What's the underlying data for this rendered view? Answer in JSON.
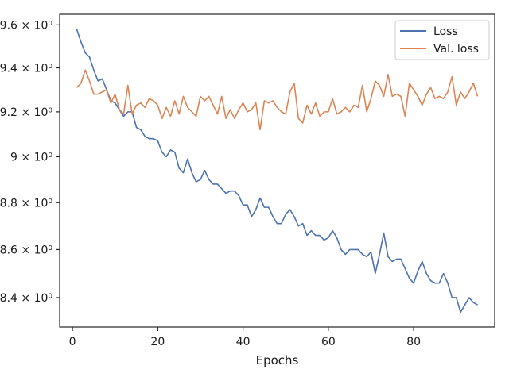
{
  "chart_data": {
    "type": "line",
    "xlabel": "Epochs",
    "ylabel": "",
    "yscale": "log",
    "xlim": [
      -3,
      99
    ],
    "ylim": [
      8.28,
      9.65
    ],
    "xticks": [
      0,
      20,
      40,
      60,
      80
    ],
    "xtick_labels": [
      "0",
      "20",
      "40",
      "60",
      "80"
    ],
    "yticks": [
      8.4,
      8.6,
      8.8,
      9.0,
      9.2,
      9.4,
      9.6
    ],
    "ytick_labels": [
      "8.4 × 10⁰",
      "8.6 × 10⁰",
      "8.8 × 10⁰",
      "9 × 10⁰",
      "9.2 × 10⁰",
      "9.4 × 10⁰",
      "9.6 × 10⁰"
    ],
    "grid": false,
    "legend_position": "top-right",
    "series": [
      {
        "name": "Loss",
        "color": "#4c72b0",
        "x": [
          1,
          2,
          3,
          4,
          5,
          6,
          7,
          8,
          9,
          10,
          11,
          12,
          13,
          14,
          15,
          16,
          17,
          18,
          19,
          20,
          21,
          22,
          23,
          24,
          25,
          26,
          27,
          28,
          29,
          30,
          31,
          32,
          33,
          34,
          35,
          36,
          37,
          38,
          39,
          40,
          41,
          42,
          43,
          44,
          45,
          46,
          47,
          48,
          49,
          50,
          51,
          52,
          53,
          54,
          55,
          56,
          57,
          58,
          59,
          60,
          61,
          62,
          63,
          64,
          65,
          66,
          67,
          68,
          69,
          70,
          71,
          72,
          73,
          74,
          75,
          76,
          77,
          78,
          79,
          80,
          81,
          82,
          83,
          84,
          85,
          86,
          87,
          88,
          89,
          90,
          91,
          92,
          93,
          94,
          95
        ],
        "values": [
          9.58,
          9.52,
          9.47,
          9.45,
          9.39,
          9.34,
          9.35,
          9.3,
          9.25,
          9.24,
          9.21,
          9.18,
          9.2,
          9.2,
          9.13,
          9.12,
          9.09,
          9.08,
          9.08,
          9.07,
          9.02,
          9.0,
          9.03,
          9.02,
          8.95,
          8.93,
          8.99,
          8.93,
          8.89,
          8.9,
          8.94,
          8.9,
          8.88,
          8.88,
          8.86,
          8.84,
          8.85,
          8.85,
          8.83,
          8.79,
          8.79,
          8.74,
          8.77,
          8.82,
          8.78,
          8.78,
          8.74,
          8.71,
          8.71,
          8.75,
          8.77,
          8.74,
          8.7,
          8.71,
          8.66,
          8.68,
          8.66,
          8.66,
          8.64,
          8.65,
          8.68,
          8.65,
          8.6,
          8.58,
          8.6,
          8.6,
          8.6,
          8.58,
          8.57,
          8.59,
          8.5,
          8.58,
          8.67,
          8.57,
          8.55,
          8.56,
          8.56,
          8.52,
          8.48,
          8.46,
          8.51,
          8.55,
          8.5,
          8.47,
          8.46,
          8.46,
          8.5,
          8.46,
          8.4,
          8.4,
          8.34,
          8.37,
          8.4,
          8.38,
          8.37
        ]
      },
      {
        "name": "Val. loss",
        "color": "#dd8452",
        "x": [
          1,
          2,
          3,
          4,
          5,
          6,
          7,
          8,
          9,
          10,
          11,
          12,
          13,
          14,
          15,
          16,
          17,
          18,
          19,
          20,
          21,
          22,
          23,
          24,
          25,
          26,
          27,
          28,
          29,
          30,
          31,
          32,
          33,
          34,
          35,
          36,
          37,
          38,
          39,
          40,
          41,
          42,
          43,
          44,
          45,
          46,
          47,
          48,
          49,
          50,
          51,
          52,
          53,
          54,
          55,
          56,
          57,
          58,
          59,
          60,
          61,
          62,
          63,
          64,
          65,
          66,
          67,
          68,
          69,
          70,
          71,
          72,
          73,
          74,
          75,
          76,
          77,
          78,
          79,
          80,
          81,
          82,
          83,
          84,
          85,
          86,
          87,
          88,
          89,
          90,
          91,
          92,
          93,
          94,
          95
        ],
        "values": [
          9.31,
          9.33,
          9.39,
          9.34,
          9.28,
          9.28,
          9.29,
          9.3,
          9.24,
          9.28,
          9.21,
          9.19,
          9.32,
          9.19,
          9.23,
          9.24,
          9.22,
          9.26,
          9.25,
          9.23,
          9.17,
          9.22,
          9.18,
          9.25,
          9.19,
          9.27,
          9.22,
          9.2,
          9.18,
          9.27,
          9.25,
          9.27,
          9.23,
          9.19,
          9.27,
          9.17,
          9.21,
          9.17,
          9.21,
          9.24,
          9.2,
          9.21,
          9.24,
          9.12,
          9.25,
          9.24,
          9.25,
          9.22,
          9.2,
          9.19,
          9.29,
          9.33,
          9.17,
          9.15,
          9.23,
          9.19,
          9.24,
          9.18,
          9.2,
          9.2,
          9.26,
          9.19,
          9.2,
          9.22,
          9.2,
          9.23,
          9.22,
          9.32,
          9.2,
          9.26,
          9.34,
          9.32,
          9.27,
          9.37,
          9.27,
          9.28,
          9.27,
          9.18,
          9.33,
          9.3,
          9.27,
          9.23,
          9.28,
          9.31,
          9.26,
          9.27,
          9.26,
          9.29,
          9.36,
          9.23,
          9.29,
          9.26,
          9.29,
          9.33,
          9.27
        ]
      }
    ]
  }
}
